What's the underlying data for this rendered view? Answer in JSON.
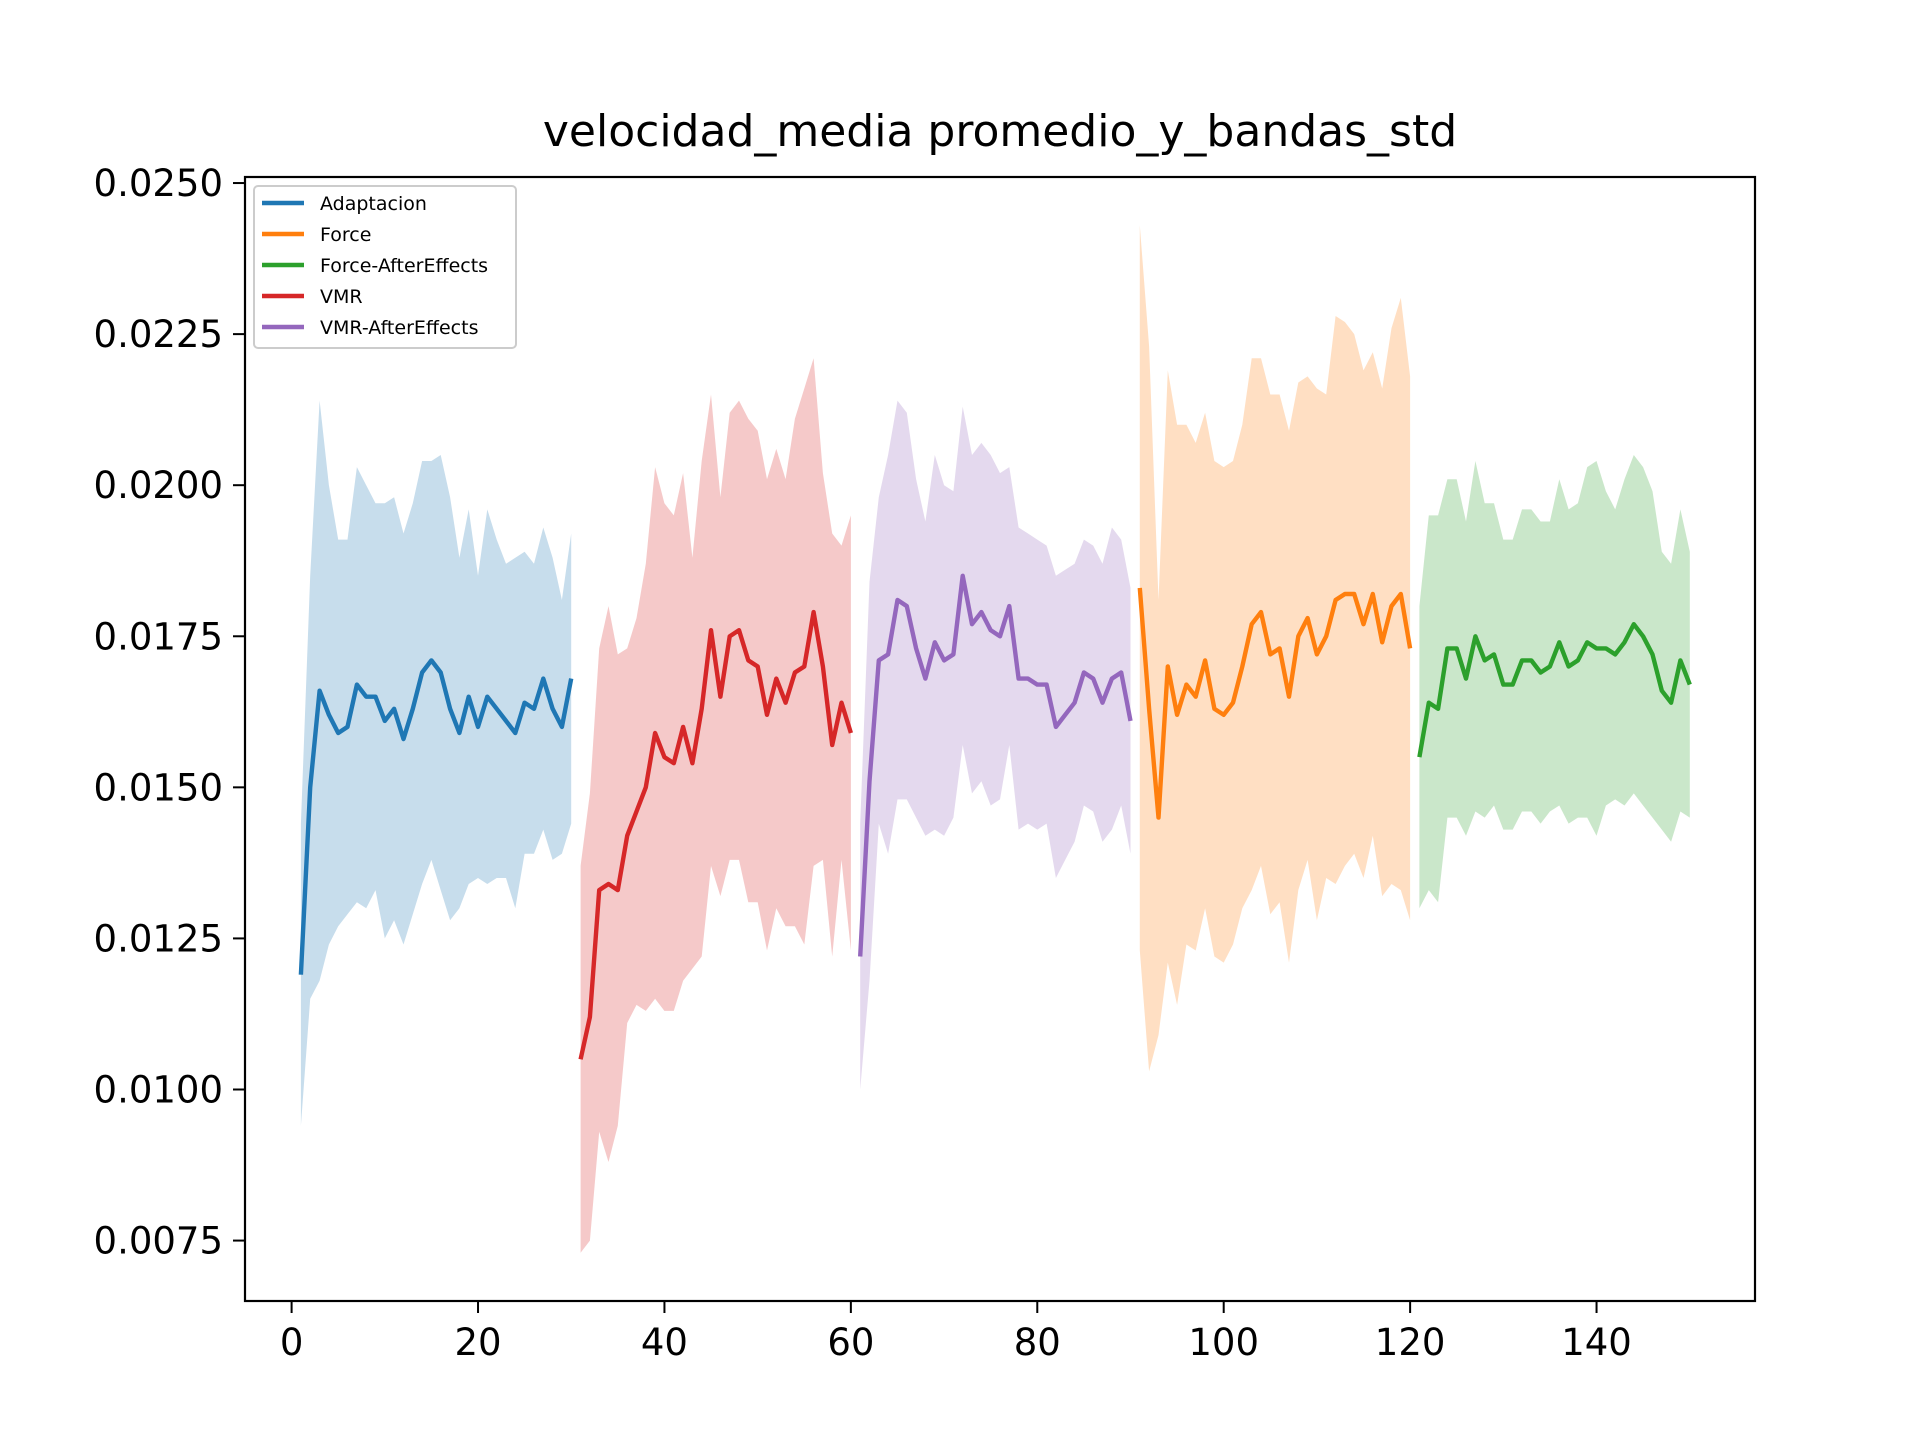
{
  "chart_data": {
    "type": "line",
    "title": "velocidad_media promedio_y_bandas_std",
    "xlabel": "",
    "ylabel": "",
    "xlim": [
      -5,
      157
    ],
    "ylim": [
      0.0065,
      0.0251
    ],
    "xticks": [
      0,
      20,
      40,
      60,
      80,
      100,
      120,
      140
    ],
    "xtick_labels": [
      "0",
      "20",
      "40",
      "60",
      "80",
      "100",
      "120",
      "140"
    ],
    "yticks": [
      0.0075,
      0.01,
      0.0125,
      0.015,
      0.0175,
      0.02,
      0.0225,
      0.025
    ],
    "ytick_labels": [
      "0.0075",
      "0.0100",
      "0.0125",
      "0.0150",
      "0.0175",
      "0.0200",
      "0.0225",
      "0.0250"
    ],
    "grid": false,
    "legend_position": "top-left",
    "band_opacity": 0.25,
    "series": [
      {
        "name": "Adaptacion",
        "color": "#1f77b4",
        "x_start": 1,
        "mean": [
          0.0119,
          0.015,
          0.0166,
          0.0162,
          0.0159,
          0.016,
          0.0167,
          0.0165,
          0.0165,
          0.0161,
          0.0163,
          0.0158,
          0.0163,
          0.0169,
          0.0171,
          0.0169,
          0.0163,
          0.0159,
          0.0165,
          0.016,
          0.0165,
          0.0163,
          0.0161,
          0.0159,
          0.0164,
          0.0163,
          0.0168,
          0.0163,
          0.016,
          0.0168
        ],
        "std": [
          0.0025,
          0.0035,
          0.0048,
          0.0038,
          0.0032,
          0.0031,
          0.0036,
          0.0035,
          0.0032,
          0.0036,
          0.0035,
          0.0034,
          0.0034,
          0.0035,
          0.0033,
          0.0036,
          0.0035,
          0.0029,
          0.0031,
          0.0025,
          0.0031,
          0.0028,
          0.0026,
          0.0029,
          0.0025,
          0.0024,
          0.0025,
          0.0025,
          0.0021,
          0.0024
        ]
      },
      {
        "name": "Force",
        "color": "#ff7f0e",
        "x_start": 91,
        "mean": [
          0.0183,
          0.0163,
          0.0145,
          0.017,
          0.0162,
          0.0167,
          0.0165,
          0.0171,
          0.0163,
          0.0162,
          0.0164,
          0.017,
          0.0177,
          0.0179,
          0.0172,
          0.0173,
          0.0165,
          0.0175,
          0.0178,
          0.0172,
          0.0175,
          0.0181,
          0.0182,
          0.0182,
          0.0177,
          0.0182,
          0.0174,
          0.018,
          0.0182,
          0.0173
        ],
        "std": [
          0.006,
          0.006,
          0.0036,
          0.0049,
          0.0048,
          0.0043,
          0.0042,
          0.0041,
          0.0041,
          0.0041,
          0.004,
          0.004,
          0.0044,
          0.0042,
          0.0043,
          0.0042,
          0.0044,
          0.0042,
          0.004,
          0.0044,
          0.004,
          0.0047,
          0.0045,
          0.0043,
          0.0042,
          0.004,
          0.0042,
          0.0046,
          0.0049,
          0.0045
        ]
      },
      {
        "name": "Force-AfterEffects",
        "color": "#2ca02c",
        "x_start": 121,
        "mean": [
          0.0155,
          0.0164,
          0.0163,
          0.0173,
          0.0173,
          0.0168,
          0.0175,
          0.0171,
          0.0172,
          0.0167,
          0.0167,
          0.0171,
          0.0171,
          0.0169,
          0.017,
          0.0174,
          0.017,
          0.0171,
          0.0174,
          0.0173,
          0.0173,
          0.0172,
          0.0174,
          0.0177,
          0.0175,
          0.0172,
          0.0166,
          0.0164,
          0.0171,
          0.0167
        ],
        "std": [
          0.0025,
          0.0031,
          0.0032,
          0.0028,
          0.0028,
          0.0026,
          0.0029,
          0.0026,
          0.0025,
          0.0024,
          0.0024,
          0.0025,
          0.0025,
          0.0025,
          0.0024,
          0.0027,
          0.0026,
          0.0026,
          0.0029,
          0.0031,
          0.0026,
          0.0024,
          0.0027,
          0.0028,
          0.0028,
          0.0027,
          0.0023,
          0.0023,
          0.0025,
          0.0022
        ]
      },
      {
        "name": "VMR",
        "color": "#d62728",
        "x_start": 31,
        "mean": [
          0.0105,
          0.0112,
          0.0133,
          0.0134,
          0.0133,
          0.0142,
          0.0146,
          0.015,
          0.0159,
          0.0155,
          0.0154,
          0.016,
          0.0154,
          0.0163,
          0.0176,
          0.0165,
          0.0175,
          0.0176,
          0.0171,
          0.017,
          0.0162,
          0.0168,
          0.0164,
          0.0169,
          0.017,
          0.0179,
          0.017,
          0.0157,
          0.0164,
          0.0159
        ],
        "std": [
          0.0032,
          0.0037,
          0.004,
          0.0046,
          0.0039,
          0.0031,
          0.0032,
          0.0037,
          0.0044,
          0.0042,
          0.0041,
          0.0042,
          0.0034,
          0.0041,
          0.0039,
          0.0033,
          0.0037,
          0.0038,
          0.004,
          0.0039,
          0.0039,
          0.0038,
          0.0037,
          0.0042,
          0.0046,
          0.0042,
          0.0032,
          0.0035,
          0.0026,
          0.0036
        ]
      },
      {
        "name": "VMR-AfterEffects",
        "color": "#9467bd",
        "x_start": 61,
        "mean": [
          0.0122,
          0.0151,
          0.0171,
          0.0172,
          0.0181,
          0.018,
          0.0173,
          0.0168,
          0.0174,
          0.0171,
          0.0172,
          0.0185,
          0.0177,
          0.0179,
          0.0176,
          0.0175,
          0.018,
          0.0168,
          0.0168,
          0.0167,
          0.0167,
          0.016,
          0.0162,
          0.0164,
          0.0169,
          0.0168,
          0.0164,
          0.0168,
          0.0169,
          0.0161
        ],
        "std": [
          0.0022,
          0.0033,
          0.0027,
          0.0033,
          0.0033,
          0.0032,
          0.0028,
          0.0026,
          0.0031,
          0.0029,
          0.0027,
          0.0028,
          0.0028,
          0.0028,
          0.0029,
          0.0027,
          0.0023,
          0.0025,
          0.0024,
          0.0024,
          0.0023,
          0.0025,
          0.0024,
          0.0023,
          0.0022,
          0.0022,
          0.0023,
          0.0025,
          0.0022,
          0.0022
        ]
      }
    ]
  }
}
